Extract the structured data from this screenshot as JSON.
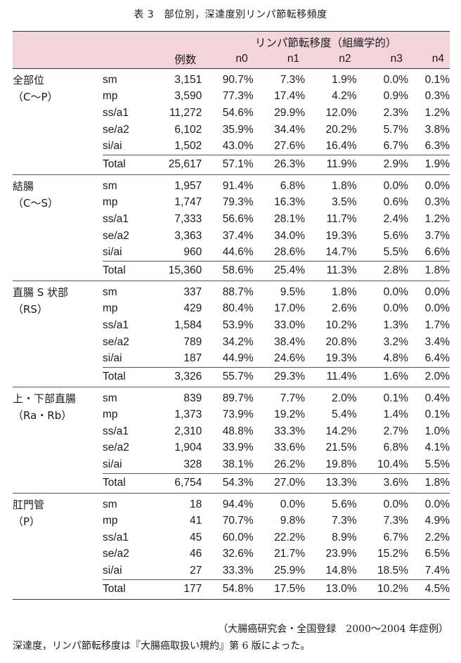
{
  "title": "表 3　部位別，深達度別リンパ節転移頻度",
  "header": {
    "group_label": "リンパ節転移度（組織学的）",
    "columns": [
      "例数",
      "n0",
      "n1",
      "n2",
      "n3",
      "n4"
    ]
  },
  "groups": [
    {
      "name": "全部位",
      "sub": "（C〜P）",
      "rows": [
        [
          "sm",
          "3,151",
          "90.7%",
          "7.3%",
          "1.9%",
          "0.0%",
          "0.1%"
        ],
        [
          "mp",
          "3,590",
          "77.3%",
          "17.4%",
          "4.2%",
          "0.9%",
          "0.3%"
        ],
        [
          "ss/a1",
          "11,272",
          "54.6%",
          "29.9%",
          "12.0%",
          "2.3%",
          "1.2%"
        ],
        [
          "se/a2",
          "6,102",
          "35.9%",
          "34.4%",
          "20.2%",
          "5.7%",
          "3.8%"
        ],
        [
          "si/ai",
          "1,502",
          "43.0%",
          "27.6%",
          "16.4%",
          "6.7%",
          "6.3%"
        ]
      ],
      "total": [
        "Total",
        "25,617",
        "57.1%",
        "26.3%",
        "11.9%",
        "2.9%",
        "1.9%"
      ]
    },
    {
      "name": "結腸",
      "sub": "（C〜S）",
      "rows": [
        [
          "sm",
          "1,957",
          "91.4%",
          "6.8%",
          "1.8%",
          "0.0%",
          "0.0%"
        ],
        [
          "mp",
          "1,747",
          "79.3%",
          "16.3%",
          "3.5%",
          "0.6%",
          "0.3%"
        ],
        [
          "ss/a1",
          "7,333",
          "56.6%",
          "28.1%",
          "11.7%",
          "2.4%",
          "1.2%"
        ],
        [
          "se/a2",
          "3,363",
          "37.4%",
          "34.0%",
          "19.3%",
          "5.6%",
          "3.7%"
        ],
        [
          "si/ai",
          "960",
          "44.6%",
          "28.6%",
          "14.7%",
          "5.5%",
          "6.6%"
        ]
      ],
      "total": [
        "Total",
        "15,360",
        "58.6%",
        "25.4%",
        "11.3%",
        "2.8%",
        "1.8%"
      ]
    },
    {
      "name": "直腸 S 状部",
      "sub": "（RS）",
      "rows": [
        [
          "sm",
          "337",
          "88.7%",
          "9.5%",
          "1.8%",
          "0.0%",
          "0.0%"
        ],
        [
          "mp",
          "429",
          "80.4%",
          "17.0%",
          "2.6%",
          "0.0%",
          "0.0%"
        ],
        [
          "ss/a1",
          "1,584",
          "53.9%",
          "33.0%",
          "10.2%",
          "1.3%",
          "1.7%"
        ],
        [
          "se/a2",
          "789",
          "34.2%",
          "38.4%",
          "20.8%",
          "3.2%",
          "3.4%"
        ],
        [
          "si/ai",
          "187",
          "44.9%",
          "24.6%",
          "19.3%",
          "4.8%",
          "6.4%"
        ]
      ],
      "total": [
        "Total",
        "3,326",
        "55.7%",
        "29.3%",
        "11.4%",
        "1.6%",
        "2.0%"
      ]
    },
    {
      "name": "上・下部直腸",
      "sub": "（Ra・Rb）",
      "rows": [
        [
          "sm",
          "839",
          "89.7%",
          "7.7%",
          "2.0%",
          "0.1%",
          "0.4%"
        ],
        [
          "mp",
          "1,373",
          "73.9%",
          "19.2%",
          "5.4%",
          "1.4%",
          "0.1%"
        ],
        [
          "ss/a1",
          "2,310",
          "48.8%",
          "33.3%",
          "14.2%",
          "2.7%",
          "1.0%"
        ],
        [
          "se/a2",
          "1,904",
          "33.9%",
          "33.6%",
          "21.5%",
          "6.8%",
          "4.1%"
        ],
        [
          "si/ai",
          "328",
          "38.1%",
          "26.2%",
          "19.8%",
          "10.4%",
          "5.5%"
        ]
      ],
      "total": [
        "Total",
        "6,754",
        "54.3%",
        "27.0%",
        "13.3%",
        "3.6%",
        "1.8%"
      ]
    },
    {
      "name": "肛門管",
      "sub": "（P）",
      "rows": [
        [
          "sm",
          "18",
          "94.4%",
          "0.0%",
          "5.6%",
          "0.0%",
          "0.0%"
        ],
        [
          "mp",
          "41",
          "70.7%",
          "9.8%",
          "7.3%",
          "7.3%",
          "4.9%"
        ],
        [
          "ss/a1",
          "45",
          "60.0%",
          "22.2%",
          "8.9%",
          "6.7%",
          "2.2%"
        ],
        [
          "se/a2",
          "46",
          "32.6%",
          "21.7%",
          "23.9%",
          "15.2%",
          "6.5%"
        ],
        [
          "si/ai",
          "27",
          "33.3%",
          "25.9%",
          "14.8%",
          "18.5%",
          "7.4%"
        ]
      ],
      "total": [
        "Total",
        "177",
        "54.8%",
        "17.5%",
        "13.0%",
        "10.2%",
        "4.5%"
      ]
    }
  ],
  "source": "（大腸癌研究会・全国登録　2000〜2004 年症例）",
  "note": "深達度，リンパ節転移度は『大腸癌取扱い規約』第 6 版によった。"
}
